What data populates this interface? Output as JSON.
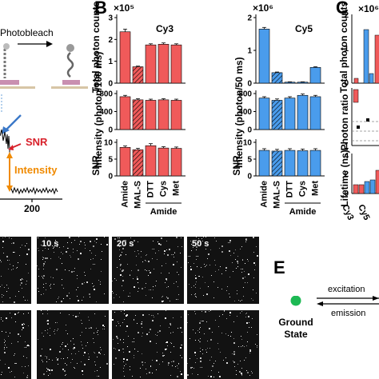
{
  "panel_letters": {
    "b": "B",
    "c": "C",
    "e": "E"
  },
  "panel_a": {
    "photobleach_label": "Photobleach",
    "snr_label": "SNR",
    "intensity_label": "Intensity",
    "x_tick": "200",
    "colors": {
      "snr": "#d8202a",
      "intensity": "#f08a00",
      "arrow": "#3a78c8"
    }
  },
  "panel_b": {
    "row_titles": {
      "total": "Total photon counts",
      "intensity_cy3": "Intensity (photon/100 ms)",
      "intensity_cy5": "Intensity (photon/50 ms)",
      "snr": "SNR"
    },
    "group_label": "Amide",
    "colors": {
      "cy3": "#f05a5a",
      "cy5": "#4a9cec"
    }
  },
  "panel_c": {
    "multiplier": "×10⁶",
    "row_titles": {
      "total": "Total photon counts",
      "ratio": "Photon ratio",
      "lifetime": "Lifetime (ns)"
    },
    "categories": [
      "Cy3",
      "Cy5"
    ]
  },
  "panel_d": {
    "time_labels": [
      "10 s",
      "20 s",
      "50 s"
    ]
  },
  "panel_e": {
    "ground_state": "Ground State",
    "excitation": "excitation",
    "emission": "emission",
    "dot_color": "#1db954"
  },
  "chart_data": [
    {
      "type": "bar",
      "title": "Cy3",
      "categories": [
        "Amide",
        "MAL-S",
        "DTT",
        "Cys",
        "Met"
      ],
      "rows": [
        {
          "ylabel": "Total photon counts",
          "multiplier": "×10⁵",
          "ylim": [
            0,
            3
          ],
          "yticks": [
            0,
            1,
            2,
            3
          ],
          "values": [
            2.35,
            0.75,
            1.75,
            1.78,
            1.75
          ],
          "errors": [
            0.12,
            0.03,
            0.05,
            0.06,
            0.05
          ],
          "hatched": [
            false,
            true,
            false,
            false,
            false
          ]
        },
        {
          "ylabel": "Intensity (photon/100 ms)",
          "ylim": [
            0,
            800
          ],
          "yticks": [
            0,
            400,
            800
          ],
          "values": [
            730,
            660,
            650,
            660,
            650
          ],
          "errors": [
            30,
            25,
            25,
            25,
            25
          ],
          "hatched": [
            false,
            true,
            false,
            false,
            false
          ]
        },
        {
          "ylabel": "SNR",
          "ylim": [
            0,
            10
          ],
          "yticks": [
            0,
            5,
            10
          ],
          "values": [
            8.5,
            7.8,
            9.0,
            8.3,
            8.2
          ],
          "errors": [
            0.4,
            0.4,
            0.6,
            0.4,
            0.4
          ],
          "hatched": [
            false,
            true,
            false,
            false,
            false
          ]
        }
      ]
    },
    {
      "type": "bar",
      "title": "Cy5",
      "categories": [
        "Amide",
        "MAL-S",
        "DTT",
        "Cys",
        "Met"
      ],
      "rows": [
        {
          "ylabel": "Total photon counts",
          "multiplier": "×10⁶",
          "ylim": [
            0,
            2
          ],
          "yticks": [
            0,
            1,
            2
          ],
          "values": [
            1.65,
            0.32,
            0.03,
            0.03,
            0.48
          ],
          "errors": [
            0.05,
            0.02,
            0.01,
            0.01,
            0.02
          ],
          "hatched": [
            false,
            true,
            false,
            false,
            false
          ]
        },
        {
          "ylabel": "Intensity (photon/50 ms)",
          "ylim": [
            0,
            800
          ],
          "yticks": [
            0,
            400,
            800
          ],
          "values": [
            700,
            650,
            700,
            760,
            730
          ],
          "errors": [
            30,
            30,
            30,
            30,
            30
          ],
          "hatched": [
            false,
            true,
            false,
            false,
            false
          ]
        },
        {
          "ylabel": "SNR",
          "ylim": [
            0,
            10
          ],
          "yticks": [
            0,
            5,
            10
          ],
          "values": [
            7.6,
            7.4,
            7.6,
            7.5,
            7.6
          ],
          "errors": [
            0.5,
            0.5,
            0.5,
            0.5,
            0.5
          ],
          "hatched": [
            false,
            true,
            false,
            false,
            false
          ]
        }
      ]
    }
  ]
}
